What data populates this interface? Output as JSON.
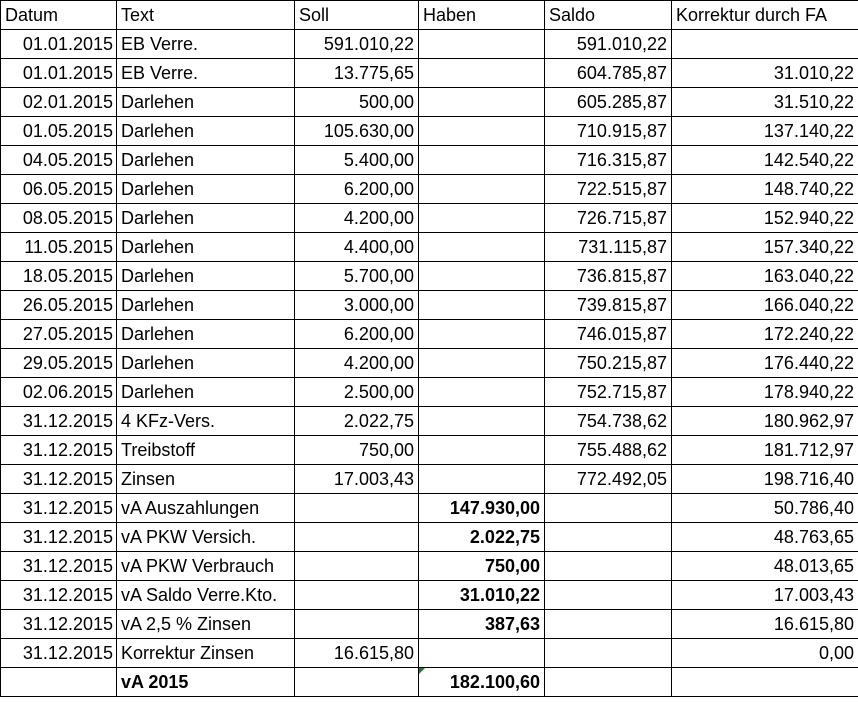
{
  "columns": {
    "datum": "Datum",
    "text": "Text",
    "soll": "Soll",
    "haben": "Haben",
    "saldo": "Saldo",
    "korrektur": "Korrektur durch FA"
  },
  "rows": [
    {
      "datum": "01.01.2015",
      "text": "EB Verre.",
      "soll": "591.010,22",
      "haben": "",
      "saldo": "591.010,22",
      "korrektur": ""
    },
    {
      "datum": "01.01.2015",
      "text": "EB Verre.",
      "soll": "13.775,65",
      "haben": "",
      "saldo": "604.785,87",
      "korrektur": "31.010,22"
    },
    {
      "datum": "02.01.2015",
      "text": "Darlehen",
      "soll": "500,00",
      "haben": "",
      "saldo": "605.285,87",
      "korrektur": "31.510,22"
    },
    {
      "datum": "01.05.2015",
      "text": "Darlehen",
      "soll": "105.630,00",
      "haben": "",
      "saldo": "710.915,87",
      "korrektur": "137.140,22"
    },
    {
      "datum": "04.05.2015",
      "text": "Darlehen",
      "soll": "5.400,00",
      "haben": "",
      "saldo": "716.315,87",
      "korrektur": "142.540,22"
    },
    {
      "datum": "06.05.2015",
      "text": "Darlehen",
      "soll": "6.200,00",
      "haben": "",
      "saldo": "722.515,87",
      "korrektur": "148.740,22"
    },
    {
      "datum": "08.05.2015",
      "text": "Darlehen",
      "soll": "4.200,00",
      "haben": "",
      "saldo": "726.715,87",
      "korrektur": "152.940,22"
    },
    {
      "datum": "11.05.2015",
      "text": "Darlehen",
      "soll": "4.400,00",
      "haben": "",
      "saldo": "731.115,87",
      "korrektur": "157.340,22"
    },
    {
      "datum": "18.05.2015",
      "text": "Darlehen",
      "soll": "5.700,00",
      "haben": "",
      "saldo": "736.815,87",
      "korrektur": "163.040,22"
    },
    {
      "datum": "26.05.2015",
      "text": "Darlehen",
      "soll": "3.000,00",
      "haben": "",
      "saldo": "739.815,87",
      "korrektur": "166.040,22"
    },
    {
      "datum": "27.05.2015",
      "text": "Darlehen",
      "soll": "6.200,00",
      "haben": "",
      "saldo": "746.015,87",
      "korrektur": "172.240,22"
    },
    {
      "datum": "29.05.2015",
      "text": "Darlehen",
      "soll": "4.200,00",
      "haben": "",
      "saldo": "750.215,87",
      "korrektur": "176.440,22"
    },
    {
      "datum": "02.06.2015",
      "text": "Darlehen",
      "soll": "2.500,00",
      "haben": "",
      "saldo": "752.715,87",
      "korrektur": "178.940,22"
    },
    {
      "datum": "31.12.2015",
      "text": "4 KFz-Vers.",
      "soll": "2.022,75",
      "haben": "",
      "saldo": "754.738,62",
      "korrektur": "180.962,97"
    },
    {
      "datum": "31.12.2015",
      "text": "Treibstoff",
      "soll": "750,00",
      "haben": "",
      "saldo": "755.488,62",
      "korrektur": "181.712,97"
    },
    {
      "datum": "31.12.2015",
      "text": "Zinsen",
      "soll": "17.003,43",
      "haben": "",
      "saldo": "772.492,05",
      "korrektur": "198.716,40"
    },
    {
      "datum": "31.12.2015",
      "text": "vA Auszahlungen",
      "soll": "",
      "haben": "147.930,00",
      "saldo": "",
      "korrektur": "50.786,40"
    },
    {
      "datum": "31.12.2015",
      "text": "vA PKW Versich.",
      "soll": "",
      "haben": "2.022,75",
      "saldo": "",
      "korrektur": "48.763,65"
    },
    {
      "datum": "31.12.2015",
      "text": "vA PKW Verbrauch",
      "soll": "",
      "haben": "750,00",
      "saldo": "",
      "korrektur": "48.013,65"
    },
    {
      "datum": "31.12.2015",
      "text": "vA Saldo Verre.Kto.",
      "soll": "",
      "haben": "31.010,22",
      "saldo": "",
      "korrektur": "17.003,43"
    },
    {
      "datum": "31.12.2015",
      "text": "vA 2,5 % Zinsen",
      "soll": "",
      "haben": "387,63",
      "saldo": "",
      "korrektur": "16.615,80"
    },
    {
      "datum": "31.12.2015",
      "text": "Korrektur Zinsen",
      "soll": "16.615,80",
      "haben": "",
      "saldo": "",
      "korrektur": "0,00"
    }
  ],
  "total": {
    "datum": "",
    "text": "vA 2015",
    "soll": "",
    "haben": "182.100,60",
    "saldo": "",
    "korrektur": ""
  },
  "colors": {
    "grid_line": "#000000",
    "error_flag": "#1e7b34"
  }
}
